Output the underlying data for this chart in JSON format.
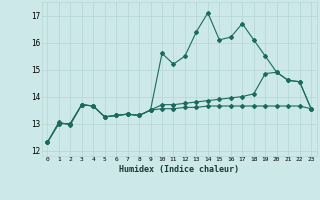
{
  "title": "",
  "xlabel": "Humidex (Indice chaleur)",
  "bg_color": "#cce8e8",
  "line_color": "#1a6b5e",
  "grid_color": "#b8d8d8",
  "x_ticks": [
    0,
    1,
    2,
    3,
    4,
    5,
    6,
    7,
    8,
    9,
    10,
    11,
    12,
    13,
    14,
    15,
    16,
    17,
    18,
    19,
    20,
    21,
    22,
    23
  ],
  "ylim": [
    11.8,
    17.5
  ],
  "yticks": [
    12,
    13,
    14,
    15,
    16,
    17
  ],
  "line1": [
    12.3,
    13.05,
    12.95,
    13.7,
    13.65,
    13.25,
    13.3,
    13.35,
    13.3,
    13.5,
    15.6,
    15.2,
    15.5,
    16.4,
    17.1,
    16.1,
    16.2,
    16.7,
    16.1,
    15.5,
    14.9,
    14.6,
    14.55,
    13.55
  ],
  "line2": [
    12.3,
    13.0,
    13.0,
    13.7,
    13.65,
    13.25,
    13.3,
    13.35,
    13.3,
    13.5,
    13.7,
    13.7,
    13.75,
    13.8,
    13.85,
    13.9,
    13.95,
    14.0,
    14.1,
    14.85,
    14.9,
    14.6,
    14.55,
    13.55
  ],
  "line3": [
    12.3,
    13.0,
    13.0,
    13.7,
    13.65,
    13.25,
    13.3,
    13.35,
    13.3,
    13.5,
    13.55,
    13.55,
    13.6,
    13.6,
    13.65,
    13.65,
    13.65,
    13.65,
    13.65,
    13.65,
    13.65,
    13.65,
    13.65,
    13.55
  ]
}
